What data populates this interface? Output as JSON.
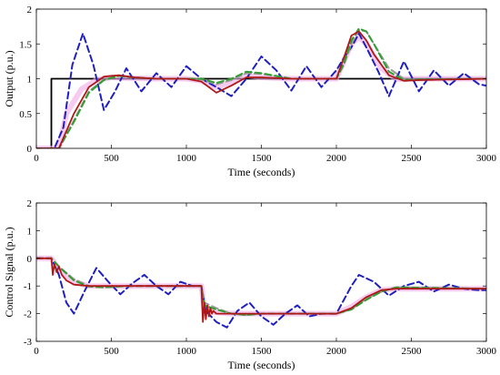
{
  "chart_data": [
    {
      "type": "line",
      "xlabel": "Time (seconds)",
      "ylabel": "Output (p.u.)",
      "xlim": [
        0,
        3000
      ],
      "ylim": [
        0,
        2
      ],
      "xticks": [
        0,
        500,
        1000,
        1500,
        2000,
        2500,
        3000
      ],
      "yticks": [
        0,
        0.5,
        1,
        1.5,
        2
      ],
      "grid": false,
      "series": [
        {
          "color": "#000000",
          "style": "solid",
          "x": [
            0,
            100,
            100,
            3000
          ],
          "y": [
            0,
            0,
            1,
            1
          ]
        },
        {
          "color": "#f2a6e6",
          "style": "solid-wide",
          "x": [
            0,
            150,
            200,
            300,
            400,
            500,
            600,
            800,
            1000,
            1100,
            1200,
            1300,
            1400,
            1500,
            1700,
            2000,
            2100,
            2150,
            2200,
            2300,
            2400,
            2500,
            3000
          ],
          "y": [
            0,
            0,
            0.5,
            0.85,
            0.98,
            1.02,
            1.01,
            1,
            1,
            0.97,
            0.88,
            0.95,
            1.05,
            1.02,
            1,
            1,
            1.5,
            1.6,
            1.5,
            1.15,
            0.99,
            1,
            1
          ]
        },
        {
          "color": "#1f1fbf",
          "style": "dashed",
          "x": [
            0,
            120,
            180,
            240,
            310,
            380,
            450,
            520,
            600,
            700,
            800,
            900,
            1000,
            1100,
            1200,
            1300,
            1400,
            1500,
            1600,
            1700,
            1800,
            1900,
            2000,
            2050,
            2100,
            2150,
            2200,
            2280,
            2350,
            2450,
            2550,
            2650,
            2750,
            2850,
            2950,
            3000
          ],
          "y": [
            0,
            0,
            0.3,
            1.2,
            1.65,
            1.2,
            0.55,
            0.8,
            1.15,
            0.82,
            1.08,
            0.88,
            1.18,
            1.0,
            0.88,
            0.75,
            1.0,
            1.32,
            1.12,
            0.83,
            1.18,
            0.88,
            1.12,
            1.3,
            1.45,
            1.65,
            1.45,
            1.1,
            0.75,
            1.25,
            0.82,
            1.12,
            0.9,
            1.08,
            0.92,
            0.9
          ]
        },
        {
          "color": "#9a9a9a",
          "style": "dashed",
          "x": [
            0,
            150,
            250,
            350,
            450,
            550,
            650,
            800,
            1000,
            1100,
            1200,
            1300,
            1400,
            1500,
            1700,
            2000,
            2050,
            2100,
            2150,
            2200,
            2250,
            2350,
            2450,
            2550,
            3000
          ],
          "y": [
            0,
            0,
            0.4,
            0.82,
            0.99,
            1.04,
            1.02,
            1,
            1,
            0.99,
            0.92,
            0.98,
            1.08,
            1.07,
            1,
            1,
            1.2,
            1.5,
            1.7,
            1.68,
            1.5,
            1.15,
            1.0,
            0.98,
            1
          ]
        },
        {
          "color": "#2f9e2f",
          "style": "dashed",
          "x": [
            0,
            150,
            250,
            350,
            450,
            550,
            650,
            800,
            1000,
            1100,
            1200,
            1300,
            1400,
            1500,
            1700,
            2000,
            2050,
            2100,
            2150,
            2200,
            2250,
            2350,
            2450,
            2550,
            3000
          ],
          "y": [
            0,
            0,
            0.38,
            0.8,
            0.98,
            1.04,
            1.02,
            1,
            1,
            1.0,
            0.94,
            1.0,
            1.1,
            1.08,
            1,
            1,
            1.22,
            1.55,
            1.72,
            1.68,
            1.5,
            1.1,
            0.98,
            0.99,
            1
          ]
        },
        {
          "color": "#b01818",
          "style": "solid",
          "x": [
            0,
            150,
            250,
            350,
            450,
            550,
            650,
            800,
            1000,
            1100,
            1200,
            1300,
            1400,
            1500,
            1700,
            2000,
            2050,
            2100,
            2150,
            2200,
            2250,
            2350,
            2450,
            2550,
            3000
          ],
          "y": [
            0,
            0,
            0.5,
            0.88,
            1.03,
            1.05,
            1.02,
            1,
            1,
            0.96,
            0.8,
            0.9,
            1.02,
            1.02,
            1,
            1,
            1.3,
            1.62,
            1.68,
            1.55,
            1.35,
            1.05,
            0.97,
            0.98,
            1
          ]
        }
      ]
    },
    {
      "type": "line",
      "xlabel": "Time (seconds)",
      "ylabel": "Control Signal (p.u.)",
      "xlim": [
        0,
        3000
      ],
      "ylim": [
        -3,
        2
      ],
      "xticks": [
        0,
        500,
        1000,
        1500,
        2000,
        2500,
        3000
      ],
      "yticks": [
        -3,
        -2,
        -1,
        0,
        1,
        2
      ],
      "grid": false,
      "series": [
        {
          "color": "#f2a6e6",
          "style": "solid-wide",
          "x": [
            0,
            100,
            150,
            250,
            350,
            450,
            600,
            1100,
            1120,
            1200,
            1300,
            1400,
            1500,
            2000,
            2100,
            2200,
            2300,
            2400,
            3000
          ],
          "y": [
            0,
            0,
            -0.4,
            -0.85,
            -1.0,
            -1.0,
            -1.0,
            -1.0,
            -1.9,
            -1.95,
            -2.0,
            -2.0,
            -2.0,
            -2.0,
            -1.75,
            -1.4,
            -1.15,
            -1.1,
            -1.1
          ]
        },
        {
          "color": "#1f1fbf",
          "style": "dashed",
          "x": [
            0,
            100,
            150,
            200,
            250,
            320,
            400,
            480,
            560,
            640,
            720,
            800,
            880,
            960,
            1040,
            1100,
            1130,
            1200,
            1270,
            1340,
            1420,
            1500,
            1580,
            1660,
            1740,
            1820,
            1900,
            2000,
            2050,
            2100,
            2150,
            2250,
            2350,
            2450,
            2550,
            2650,
            2750,
            2850,
            2950,
            3000
          ],
          "y": [
            0,
            0,
            -0.6,
            -1.6,
            -2.0,
            -1.2,
            -0.35,
            -0.85,
            -1.3,
            -0.9,
            -0.6,
            -1.0,
            -1.3,
            -0.85,
            -1.0,
            -1.0,
            -1.9,
            -2.3,
            -2.5,
            -1.9,
            -1.6,
            -2.1,
            -2.4,
            -2.0,
            -1.7,
            -2.1,
            -2.0,
            -2.0,
            -1.5,
            -1.0,
            -0.6,
            -0.85,
            -1.35,
            -1.0,
            -0.85,
            -1.2,
            -0.95,
            -1.1,
            -1.15,
            -1.15
          ]
        },
        {
          "color": "#9a9a9a",
          "style": "dashed",
          "x": [
            0,
            100,
            150,
            250,
            350,
            450,
            600,
            1100,
            1120,
            1200,
            1300,
            1400,
            1500,
            2000,
            2100,
            2200,
            2300,
            2400,
            3000
          ],
          "y": [
            0,
            0,
            -0.3,
            -0.75,
            -1.0,
            -1.05,
            -1.0,
            -1.0,
            -1.6,
            -1.8,
            -2.0,
            -2.05,
            -2.0,
            -2.0,
            -1.85,
            -1.45,
            -1.2,
            -1.05,
            -1.1
          ]
        },
        {
          "color": "#2f9e2f",
          "style": "dashed",
          "x": [
            0,
            100,
            150,
            250,
            350,
            450,
            600,
            1100,
            1120,
            1200,
            1300,
            1400,
            1500,
            2000,
            2100,
            2200,
            2300,
            2400,
            3000
          ],
          "y": [
            0,
            0,
            -0.3,
            -0.8,
            -1.02,
            -1.05,
            -1.0,
            -1.0,
            -1.7,
            -1.85,
            -2.0,
            -2.05,
            -2.0,
            -2.0,
            -1.85,
            -1.5,
            -1.2,
            -1.05,
            -1.1
          ]
        },
        {
          "color": "#b01818",
          "style": "solid",
          "x": [
            0,
            100,
            110,
            120,
            135,
            150,
            170,
            200,
            250,
            350,
            450,
            600,
            1100,
            1110,
            1120,
            1130,
            1140,
            1150,
            1160,
            1170,
            1180,
            1200,
            1300,
            1400,
            2000,
            2100,
            2200,
            2300,
            2400,
            3000
          ],
          "y": [
            0,
            0,
            -0.6,
            -0.2,
            -0.5,
            -0.3,
            -0.6,
            -0.8,
            -0.95,
            -1.0,
            -1.0,
            -1.0,
            -1.0,
            -2.3,
            -1.6,
            -2.2,
            -1.7,
            -2.1,
            -1.8,
            -2.0,
            -1.9,
            -2.0,
            -2.0,
            -2.0,
            -2.0,
            -1.8,
            -1.4,
            -1.15,
            -1.1,
            -1.1
          ]
        }
      ]
    }
  ]
}
